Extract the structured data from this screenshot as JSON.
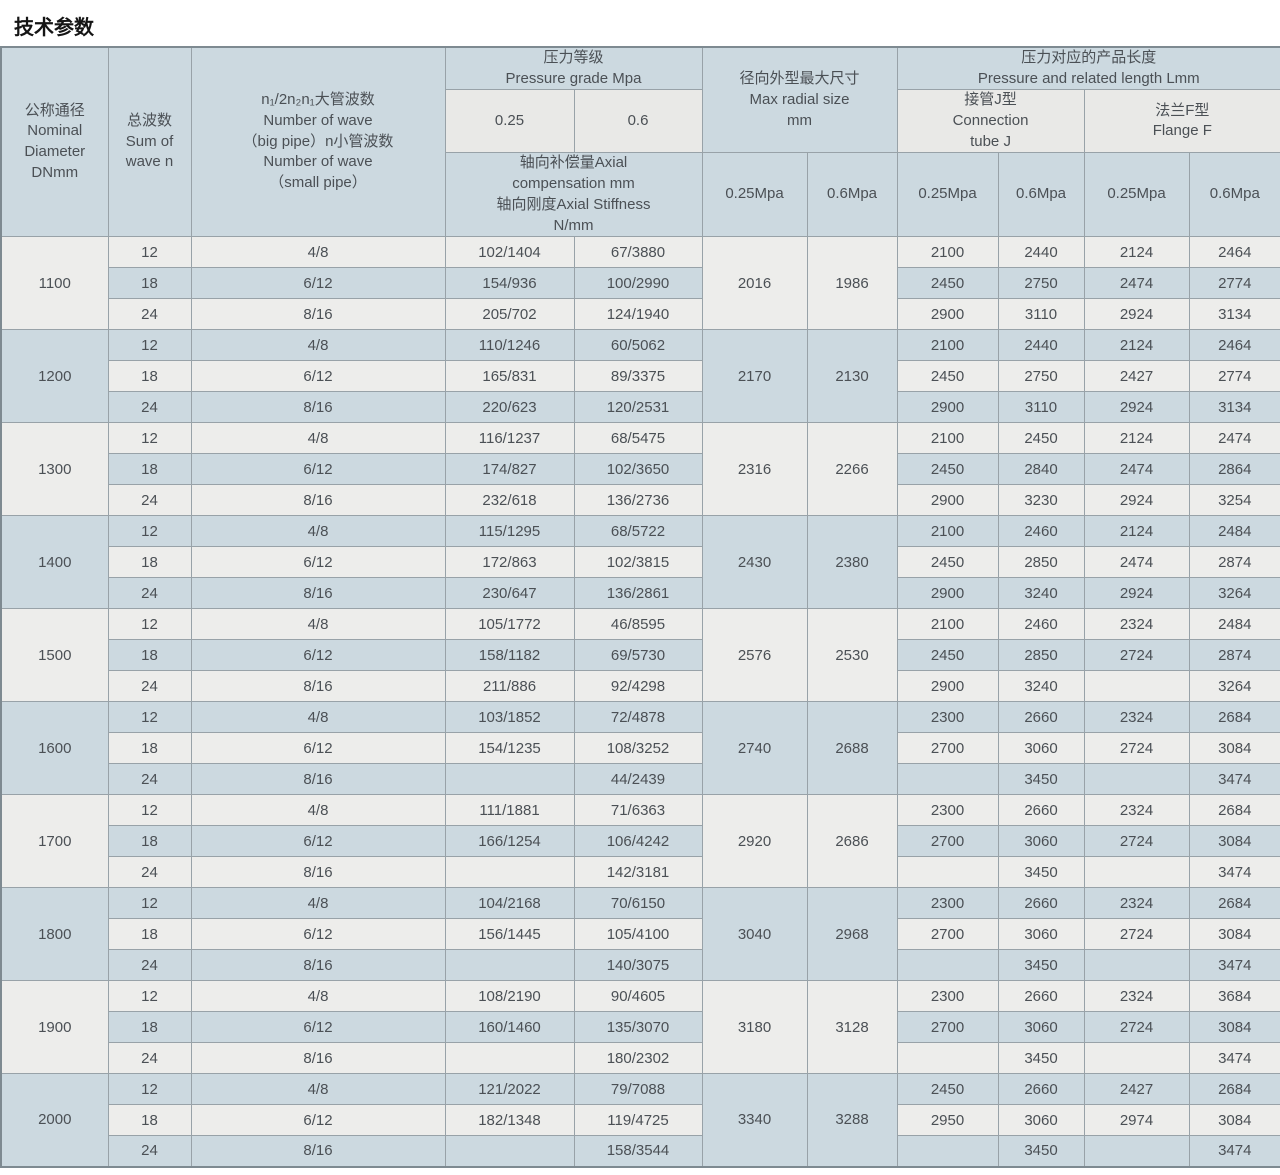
{
  "page_title": "技术参数",
  "colors": {
    "header_blue": "#ccd9e0",
    "subheader_light": "#e9e9e7",
    "row_light": "#ededeb",
    "row_blue": "#ccd9e0",
    "border": "#98a2a8",
    "outer_border": "#7e8a91",
    "text": "#4b5055"
  },
  "table": {
    "header": {
      "nominal": "公称通径\nNominal\nDiameter\nDNmm",
      "sum": "总波数\nSum of\nwave n",
      "wave": "n₁/2n₂n₁大管波数\nNumber of wave\n（big pipe）n小管波数\nNumber of wave\n（small pipe）",
      "pressure_grade": "压力等级\nPressure grade Mpa",
      "pressure_levels": [
        "0.25",
        "0.6"
      ],
      "axial_note": "轴向补偿量Axial\ncompensation mm\n轴向刚度Axial Stiffness\nN/mm",
      "radial": "径向外型最大尺寸\nMax radial size\nmm",
      "radial_sub": [
        "0.25Mpa",
        "0.6Mpa"
      ],
      "length": "压力对应的产品长度\nPressure and related length Lmm",
      "connection": "接管J型\nConnection\ntube J",
      "flange": "法兰F型\nFlange F",
      "length_sub": [
        "0.25Mpa",
        "0.6Mpa",
        "0.25Mpa",
        "0.6Mpa"
      ]
    },
    "groups": [
      {
        "dn": "1100",
        "radial_025": "2016",
        "radial_06": "1986",
        "rows": [
          {
            "n": "12",
            "wave": "4/8",
            "axial_025": "102/1404",
            "axial_06": "67/3880",
            "conn_025": "2100",
            "conn_06": "2440",
            "flange_025": "2124",
            "flange_06": "2464"
          },
          {
            "n": "18",
            "wave": "6/12",
            "axial_025": "154/936",
            "axial_06": "100/2990",
            "conn_025": "2450",
            "conn_06": "2750",
            "flange_025": "2474",
            "flange_06": "2774"
          },
          {
            "n": "24",
            "wave": "8/16",
            "axial_025": "205/702",
            "axial_06": "124/1940",
            "conn_025": "2900",
            "conn_06": "3110",
            "flange_025": "2924",
            "flange_06": "3134"
          }
        ]
      },
      {
        "dn": "1200",
        "radial_025": "2170",
        "radial_06": "2130",
        "rows": [
          {
            "n": "12",
            "wave": "4/8",
            "axial_025": "110/1246",
            "axial_06": "60/5062",
            "conn_025": "2100",
            "conn_06": "2440",
            "flange_025": "2124",
            "flange_06": "2464"
          },
          {
            "n": "18",
            "wave": "6/12",
            "axial_025": "165/831",
            "axial_06": "89/3375",
            "conn_025": "2450",
            "conn_06": "2750",
            "flange_025": "2427",
            "flange_06": "2774"
          },
          {
            "n": "24",
            "wave": "8/16",
            "axial_025": "220/623",
            "axial_06": "120/2531",
            "conn_025": "2900",
            "conn_06": "3110",
            "flange_025": "2924",
            "flange_06": "3134"
          }
        ]
      },
      {
        "dn": "1300",
        "radial_025": "2316",
        "radial_06": "2266",
        "rows": [
          {
            "n": "12",
            "wave": "4/8",
            "axial_025": "116/1237",
            "axial_06": "68/5475",
            "conn_025": "2100",
            "conn_06": "2450",
            "flange_025": "2124",
            "flange_06": "2474"
          },
          {
            "n": "18",
            "wave": "6/12",
            "axial_025": "174/827",
            "axial_06": "102/3650",
            "conn_025": "2450",
            "conn_06": "2840",
            "flange_025": "2474",
            "flange_06": "2864"
          },
          {
            "n": "24",
            "wave": "8/16",
            "axial_025": "232/618",
            "axial_06": "136/2736",
            "conn_025": "2900",
            "conn_06": "3230",
            "flange_025": "2924",
            "flange_06": "3254"
          }
        ]
      },
      {
        "dn": "1400",
        "radial_025": "2430",
        "radial_06": "2380",
        "rows": [
          {
            "n": "12",
            "wave": "4/8",
            "axial_025": "115/1295",
            "axial_06": "68/5722",
            "conn_025": "2100",
            "conn_06": "2460",
            "flange_025": "2124",
            "flange_06": "2484"
          },
          {
            "n": "18",
            "wave": "6/12",
            "axial_025": "172/863",
            "axial_06": "102/3815",
            "conn_025": "2450",
            "conn_06": "2850",
            "flange_025": "2474",
            "flange_06": "2874"
          },
          {
            "n": "24",
            "wave": "8/16",
            "axial_025": "230/647",
            "axial_06": "136/2861",
            "conn_025": "2900",
            "conn_06": "3240",
            "flange_025": "2924",
            "flange_06": "3264"
          }
        ]
      },
      {
        "dn": "1500",
        "radial_025": "2576",
        "radial_06": "2530",
        "rows": [
          {
            "n": "12",
            "wave": "4/8",
            "axial_025": "105/1772",
            "axial_06": "46/8595",
            "conn_025": "2100",
            "conn_06": "2460",
            "flange_025": "2324",
            "flange_06": "2484"
          },
          {
            "n": "18",
            "wave": "6/12",
            "axial_025": "158/1182",
            "axial_06": "69/5730",
            "conn_025": "2450",
            "conn_06": "2850",
            "flange_025": "2724",
            "flange_06": "2874"
          },
          {
            "n": "24",
            "wave": "8/16",
            "axial_025": "211/886",
            "axial_06": "92/4298",
            "conn_025": "2900",
            "conn_06": "3240",
            "flange_025": "",
            "flange_06": "3264"
          }
        ]
      },
      {
        "dn": "1600",
        "radial_025": "2740",
        "radial_06": "2688",
        "rows": [
          {
            "n": "12",
            "wave": "4/8",
            "axial_025": "103/1852",
            "axial_06": "72/4878",
            "conn_025": "2300",
            "conn_06": "2660",
            "flange_025": "2324",
            "flange_06": "2684"
          },
          {
            "n": "18",
            "wave": "6/12",
            "axial_025": "154/1235",
            "axial_06": "108/3252",
            "conn_025": "2700",
            "conn_06": "3060",
            "flange_025": "2724",
            "flange_06": "3084"
          },
          {
            "n": "24",
            "wave": "8/16",
            "axial_025": "",
            "axial_06": "44/2439",
            "conn_025": "",
            "conn_06": "3450",
            "flange_025": "",
            "flange_06": "3474"
          }
        ]
      },
      {
        "dn": "1700",
        "radial_025": "2920",
        "radial_06": "2686",
        "rows": [
          {
            "n": "12",
            "wave": "4/8",
            "axial_025": "111/1881",
            "axial_06": "71/6363",
            "conn_025": "2300",
            "conn_06": "2660",
            "flange_025": "2324",
            "flange_06": "2684"
          },
          {
            "n": "18",
            "wave": "6/12",
            "axial_025": "166/1254",
            "axial_06": "106/4242",
            "conn_025": "2700",
            "conn_06": "3060",
            "flange_025": "2724",
            "flange_06": "3084"
          },
          {
            "n": "24",
            "wave": "8/16",
            "axial_025": "",
            "axial_06": "142/3181",
            "conn_025": "",
            "conn_06": "3450",
            "flange_025": "",
            "flange_06": "3474"
          }
        ]
      },
      {
        "dn": "1800",
        "radial_025": "3040",
        "radial_06": "2968",
        "rows": [
          {
            "n": "12",
            "wave": "4/8",
            "axial_025": "104/2168",
            "axial_06": "70/6150",
            "conn_025": "2300",
            "conn_06": "2660",
            "flange_025": "2324",
            "flange_06": "2684"
          },
          {
            "n": "18",
            "wave": "6/12",
            "axial_025": "156/1445",
            "axial_06": "105/4100",
            "conn_025": "2700",
            "conn_06": "3060",
            "flange_025": "2724",
            "flange_06": "3084"
          },
          {
            "n": "24",
            "wave": "8/16",
            "axial_025": "",
            "axial_06": "140/3075",
            "conn_025": "",
            "conn_06": "3450",
            "flange_025": "",
            "flange_06": "3474"
          }
        ]
      },
      {
        "dn": "1900",
        "radial_025": "3180",
        "radial_06": "3128",
        "rows": [
          {
            "n": "12",
            "wave": "4/8",
            "axial_025": "108/2190",
            "axial_06": "90/4605",
            "conn_025": "2300",
            "conn_06": "2660",
            "flange_025": "2324",
            "flange_06": "3684"
          },
          {
            "n": "18",
            "wave": "6/12",
            "axial_025": "160/1460",
            "axial_06": "135/3070",
            "conn_025": "2700",
            "conn_06": "3060",
            "flange_025": "2724",
            "flange_06": "3084"
          },
          {
            "n": "24",
            "wave": "8/16",
            "axial_025": "",
            "axial_06": "180/2302",
            "conn_025": "",
            "conn_06": "3450",
            "flange_025": "",
            "flange_06": "3474"
          }
        ]
      },
      {
        "dn": "2000",
        "radial_025": "3340",
        "radial_06": "3288",
        "rows": [
          {
            "n": "12",
            "wave": "4/8",
            "axial_025": "121/2022",
            "axial_06": "79/7088",
            "conn_025": "2450",
            "conn_06": "2660",
            "flange_025": "2427",
            "flange_06": "2684"
          },
          {
            "n": "18",
            "wave": "6/12",
            "axial_025": "182/1348",
            "axial_06": "119/4725",
            "conn_025": "2950",
            "conn_06": "3060",
            "flange_025": "2974",
            "flange_06": "3084"
          },
          {
            "n": "24",
            "wave": "8/16",
            "axial_025": "",
            "axial_06": "158/3544",
            "conn_025": "",
            "conn_06": "3450",
            "flange_025": "",
            "flange_06": "3474"
          }
        ]
      }
    ]
  }
}
